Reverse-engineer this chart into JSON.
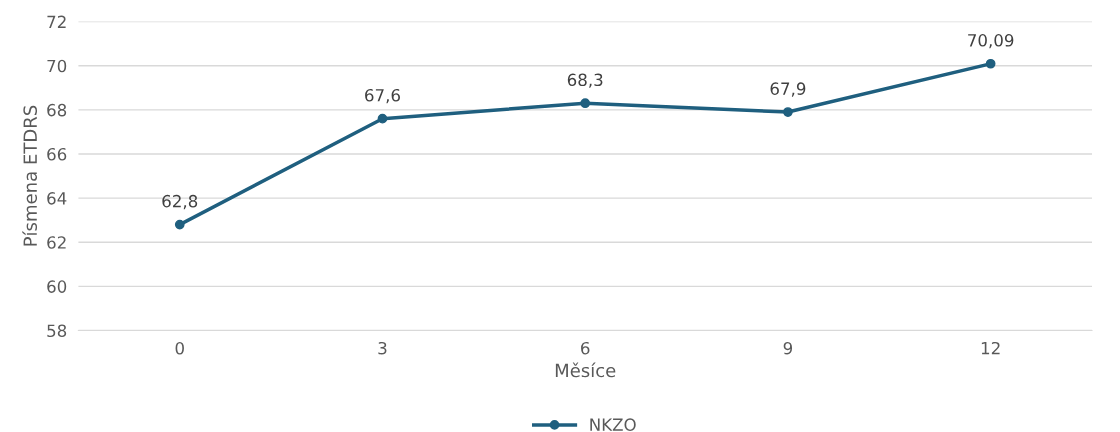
{
  "chart_data": {
    "type": "line",
    "xlabel": "Měsíce",
    "ylabel": "Písmena ETDRS",
    "categories": [
      "0",
      "3",
      "6",
      "9",
      "12"
    ],
    "series": [
      {
        "name": "NKZO",
        "color": "#1f5f7f",
        "values": [
          62.8,
          67.6,
          68.3,
          67.9,
          70.09
        ],
        "value_labels": [
          "62,8",
          "67,6",
          "68,3",
          "67,9",
          "70,09"
        ]
      }
    ],
    "ylim": [
      58,
      72
    ],
    "yticks": [
      58,
      60,
      62,
      64,
      66,
      68,
      70,
      72
    ],
    "grid": "y",
    "legend": "bottom",
    "marker": "circle",
    "line_style": "solid"
  }
}
